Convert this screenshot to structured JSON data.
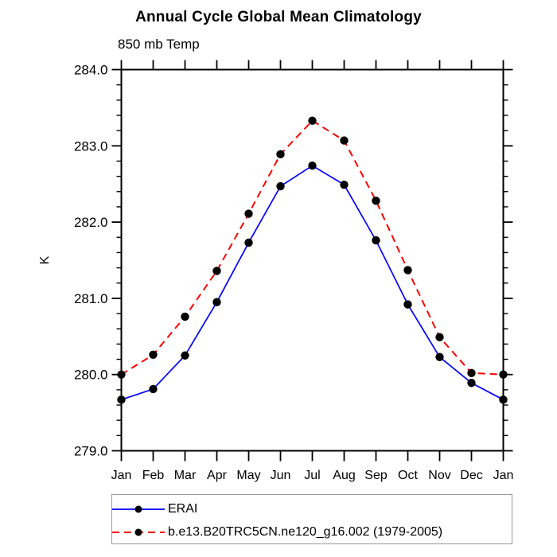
{
  "chart_data": {
    "type": "line",
    "title": "Annual Cycle Global Mean Climatology",
    "subtitle": "850 mb Temp",
    "ylabel": "K",
    "xlabel": "",
    "ylim": [
      279.0,
      284.0
    ],
    "ytick_step": 1.0,
    "ytick_minor_step": 0.2,
    "ytick_decimals": 1,
    "grid": false,
    "legend_position": "bottom-left",
    "axis_color": "#000000",
    "marker": {
      "shape": "circle",
      "color": "#000000"
    },
    "categories": [
      "Jan",
      "Feb",
      "Mar",
      "Apr",
      "May",
      "Jun",
      "Jul",
      "Aug",
      "Sep",
      "Oct",
      "Nov",
      "Dec",
      "Jan"
    ],
    "series": [
      {
        "name": "ERAI",
        "color": "#0000ff",
        "line_style": "solid",
        "line_width": 1.7,
        "values": [
          279.67,
          279.81,
          280.25,
          280.95,
          281.73,
          282.47,
          282.74,
          282.49,
          281.76,
          280.92,
          280.23,
          279.89,
          279.67
        ]
      },
      {
        "name": "b.e13.B20TRC5CN.ne120_g16.002 (1979-2005)",
        "color": "#ff0000",
        "line_style": "dashed",
        "line_width": 2,
        "values": [
          280.0,
          280.26,
          280.76,
          281.36,
          282.11,
          282.89,
          283.33,
          283.07,
          282.28,
          281.37,
          280.49,
          280.02,
          280.0
        ]
      }
    ]
  }
}
